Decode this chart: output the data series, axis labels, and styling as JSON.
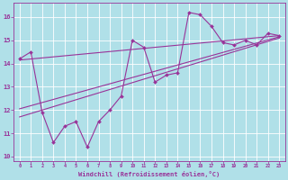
{
  "xlabel": "Windchill (Refroidissement éolien,°C)",
  "bg_color": "#b0e0e8",
  "grid_color": "#ffffff",
  "line_color": "#993399",
  "xlim": [
    -0.5,
    23.5
  ],
  "ylim": [
    9.8,
    16.6
  ],
  "yticks": [
    10,
    11,
    12,
    13,
    14,
    15,
    16
  ],
  "xticks": [
    0,
    1,
    2,
    3,
    4,
    5,
    6,
    7,
    8,
    9,
    10,
    11,
    12,
    13,
    14,
    15,
    16,
    17,
    18,
    19,
    20,
    21,
    22,
    23
  ],
  "data_x": [
    0,
    1,
    2,
    3,
    4,
    5,
    6,
    7,
    8,
    9,
    10,
    11,
    12,
    13,
    14,
    15,
    16,
    17,
    18,
    19,
    20,
    21,
    22,
    23
  ],
  "data_y": [
    14.2,
    14.5,
    11.9,
    10.6,
    11.3,
    11.5,
    10.4,
    11.5,
    12.0,
    12.6,
    15.0,
    14.7,
    13.2,
    13.5,
    13.6,
    16.2,
    16.1,
    15.6,
    14.9,
    14.8,
    15.0,
    14.8,
    15.3,
    15.2
  ],
  "trend1_x": [
    0,
    23
  ],
  "trend1_y": [
    14.15,
    15.2
  ],
  "trend2_x": [
    0,
    23
  ],
  "trend2_y": [
    12.05,
    15.15
  ],
  "trend3_x": [
    0,
    23
  ],
  "trend3_y": [
    11.7,
    15.1
  ]
}
